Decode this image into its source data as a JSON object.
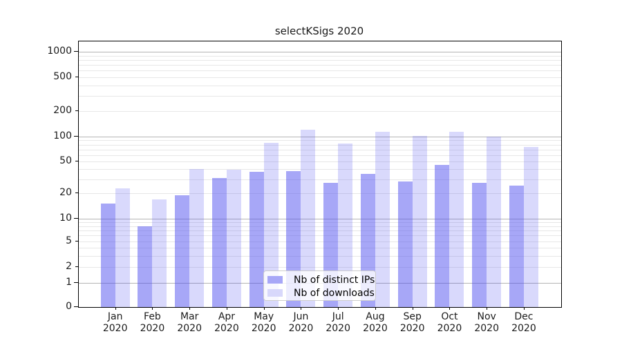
{
  "chart_data": {
    "type": "bar",
    "title": "selectKSigs 2020",
    "categories": [
      "Jan 2020",
      "Feb 2020",
      "Mar 2020",
      "Apr 2020",
      "May 2020",
      "Jun 2020",
      "Jul 2020",
      "Aug 2020",
      "Sep 2020",
      "Oct 2020",
      "Nov 2020",
      "Dec 2020"
    ],
    "series": [
      {
        "name": "Nb of distinct IPs",
        "values": [
          15,
          8,
          19,
          31,
          37,
          38,
          27,
          35,
          28,
          45,
          27,
          25
        ],
        "color": "rgba(80,80,240,0.5)",
        "legend_color": "#a7a7f7"
      },
      {
        "name": "Nb of downloads",
        "values": [
          23,
          17,
          40,
          39,
          84,
          120,
          82,
          113,
          102,
          113,
          100,
          75
        ],
        "color": "rgba(80,80,240,0.22)",
        "legend_color": "#d8d8fb"
      }
    ],
    "y_axis": {
      "scale": "symlog",
      "tick_values": [
        0,
        1,
        2,
        5,
        10,
        20,
        50,
        100,
        200,
        500,
        1000
      ],
      "tick_labels": [
        "0",
        "1",
        "2",
        "5",
        "10",
        "20",
        "50",
        "100",
        "200",
        "500",
        "1000"
      ],
      "range_max": 1300
    },
    "x_axis": {
      "label_lines": 2
    },
    "grid": true,
    "legend_position": "lower center"
  }
}
